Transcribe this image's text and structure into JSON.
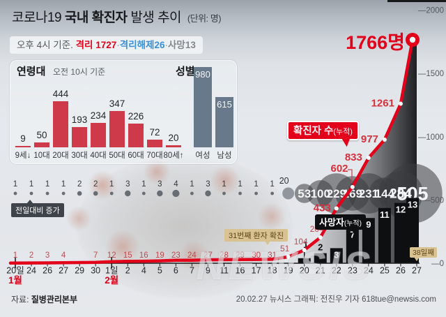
{
  "header": {
    "title_prefix": "코로나19",
    "title_bold": "국내 확진자",
    "title_suffix": "발생 추이",
    "title_unit": "(단위: 명)",
    "status": {
      "asof": "오후 4시 기준.",
      "quarantine_label": "격리 ",
      "quarantine_value": "1727",
      "released_label": "격리해제",
      "released_value": "26",
      "death_label": "사망",
      "death_value": "13",
      "sep": "·"
    }
  },
  "panel": {
    "age_title": "연령대",
    "age_asof": "오전 10시 기준",
    "gender_title": "성별"
  },
  "callouts": {
    "daily_increase": "전일대비 증가",
    "patient31": "31번째 환자 확진",
    "confirmed_main": "확진자 수",
    "confirmed_sub": "(누적)",
    "deaths_main": "사망자",
    "deaths_sub": "(누적)",
    "day38": "38일째",
    "peak": "1766명"
  },
  "footer": {
    "source_label": "자료:",
    "source": "질병관리본부",
    "credit": "20.02.27 뉴시스 그래픽: 전진우 기자 618tue@newsis.com",
    "watermark": "NEWSIS"
  },
  "colors": {
    "accent_red": "#e2001a",
    "age_bar": "#cf3a4a",
    "gender_bar": "#68798b",
    "death_bar": "#0e0f10",
    "bubble": "rgba(58,60,64,0.55)",
    "bubble_light": "rgba(122,130,138,0.8)",
    "label_red_small": "#bf4a50",
    "label_red_big": "#d6303c",
    "axis": "#1c1e20",
    "ytick": "#55595e"
  },
  "chart_data": [
    {
      "id": "age",
      "type": "bar",
      "title": "연령대",
      "subtitle": "오전 10시 기준",
      "categories": [
        "9세↓",
        "10대",
        "20대",
        "30대",
        "40대",
        "50대",
        "60대",
        "70대",
        "80세↑"
      ],
      "values": [
        9,
        50,
        444,
        193,
        234,
        347,
        226,
        72,
        20
      ]
    },
    {
      "id": "gender",
      "type": "bar",
      "title": "성별",
      "categories": [
        "여성",
        "남성"
      ],
      "values": [
        980,
        615
      ]
    },
    {
      "id": "trend",
      "type": "line+bar+bubble",
      "title": "코로나19 국내 확진자 발생 추이",
      "ylabel": "명",
      "ylim": [
        0,
        2000
      ],
      "y_ticks": [
        2000,
        1500,
        1000,
        500,
        0
      ],
      "y_tick_prefix": "—",
      "dates": [
        "20일",
        "24",
        "26",
        "27",
        "29",
        "30",
        "1일",
        "2",
        "4",
        "5",
        "6",
        "7",
        "9",
        "11",
        "16",
        "17",
        "18",
        "19",
        "20",
        "21",
        "22",
        "23",
        "24",
        "25",
        "26",
        "27"
      ],
      "months": [
        {
          "index": 0,
          "label": "1월"
        },
        {
          "index": 6,
          "label": "2월"
        }
      ],
      "series": [
        {
          "name": "확진자 수(누적)",
          "type": "line",
          "values": [
            1,
            2,
            3,
            4,
            null,
            7,
            12,
            15,
            16,
            19,
            23,
            24,
            27,
            28,
            29,
            30,
            31,
            51,
            104,
            204,
            433,
            602,
            833,
            977,
            1261,
            1766
          ],
          "labels": [
            "1",
            "2",
            "3",
            "4",
            "",
            "7",
            "12",
            "15",
            "16",
            "19",
            "23",
            "24",
            "27",
            "28",
            "29",
            "30",
            "31",
            "51",
            "104",
            "204",
            "433",
            "602",
            "833",
            "977",
            "1261",
            "1766명"
          ]
        },
        {
          "name": "전일대비 증가",
          "type": "bubble",
          "values": [
            1,
            1,
            1,
            1,
            2,
            2,
            1,
            3,
            1,
            3,
            4,
            1,
            3,
            1,
            1,
            1,
            1,
            20,
            53,
            100,
            229,
            169,
            231,
            144,
            284,
            505
          ]
        },
        {
          "name": "사망자(누적)",
          "type": "bar",
          "start_index": 18,
          "values": [
            1,
            2,
            3,
            7,
            9,
            11,
            12,
            13
          ]
        }
      ]
    }
  ]
}
